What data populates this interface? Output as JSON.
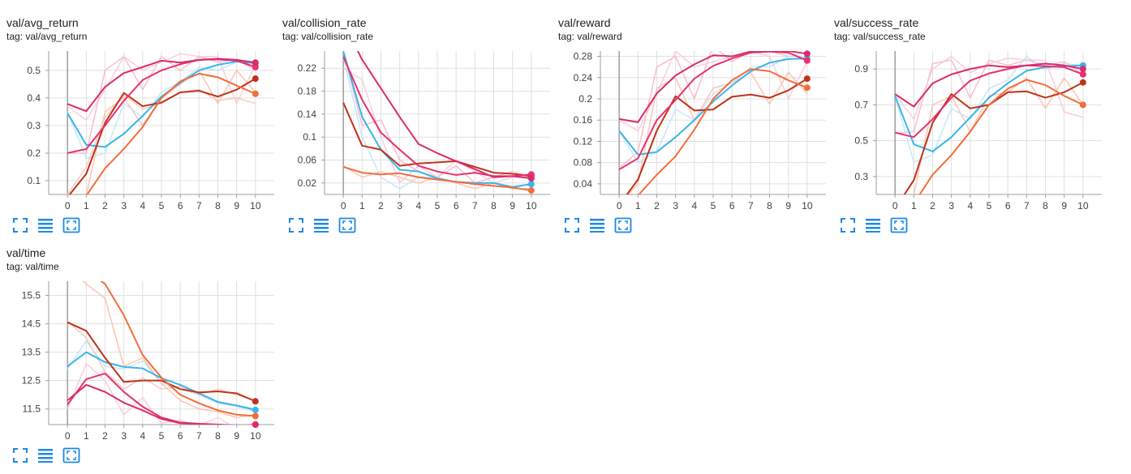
{
  "colors": {
    "grid": "#e0e0e0",
    "axis": "#9e9e9e",
    "tick_text": "#424242",
    "toolbar_icon": "#1e88e5"
  },
  "toolbar_icons": [
    "fullscreen-icon",
    "toggle-log-scale-icon",
    "fit-domain-icon"
  ],
  "charts": [
    {
      "title": "val/avg_return",
      "tag": "tag: val/avg_return"
    },
    {
      "title": "val/collision_rate",
      "tag": "tag: val/collision_rate"
    },
    {
      "title": "val/reward",
      "tag": "tag: val/reward"
    },
    {
      "title": "val/success_rate",
      "tag": "tag: val/success_rate"
    },
    {
      "title": "val/time",
      "tag": "tag: val/time"
    }
  ],
  "chart_data": [
    {
      "type": "line",
      "title": "val/avg_return",
      "x": [
        0,
        1,
        2,
        3,
        4,
        5,
        6,
        7,
        8,
        9,
        10
      ],
      "xticks": [
        0,
        1,
        2,
        3,
        4,
        5,
        6,
        7,
        8,
        9,
        10
      ],
      "yticks": [
        0.1,
        0.2,
        0.3,
        0.4,
        0.5
      ],
      "ylabels": [
        "0.1",
        "0.2",
        "0.3",
        "0.4",
        "0.5"
      ],
      "xlim": [
        -1,
        11
      ],
      "ylim": [
        0.05,
        0.57
      ],
      "grid": true,
      "series": [
        {
          "color": "#39b6e8",
          "values": [
            0.345,
            0.23,
            0.222,
            0.27,
            0.335,
            0.405,
            0.455,
            0.5,
            0.52,
            0.532,
            0.525
          ]
        },
        {
          "color": "#c0321a",
          "values": [
            0.04,
            0.125,
            0.31,
            0.418,
            0.37,
            0.383,
            0.42,
            0.426,
            0.405,
            0.43,
            0.47
          ]
        },
        {
          "color": "#f26d3d",
          "values": [
            -0.01,
            0.045,
            0.145,
            0.215,
            0.295,
            0.4,
            0.46,
            0.488,
            0.475,
            0.445,
            0.415
          ]
        },
        {
          "color": "#e8306f",
          "values": [
            0.2,
            0.215,
            0.3,
            0.39,
            0.465,
            0.5,
            0.522,
            0.538,
            0.54,
            0.535,
            0.512
          ]
        },
        {
          "color": "#d92b6e",
          "values": [
            0.378,
            0.352,
            0.44,
            0.49,
            0.512,
            0.535,
            0.528,
            0.538,
            0.542,
            0.538,
            0.528
          ]
        }
      ],
      "raw_series": [
        {
          "color": "#f7b6c8",
          "values": [
            0.2,
            0.2,
            0.5,
            0.55,
            0.43,
            0.55,
            0.5,
            0.55,
            0.53,
            0.54,
            0.5
          ]
        },
        {
          "color": "#fbbfaa",
          "values": [
            0.0,
            0.05,
            0.35,
            0.4,
            0.3,
            0.4,
            0.45,
            0.5,
            0.38,
            0.5,
            0.42
          ]
        },
        {
          "color": "#f9c8d6",
          "values": [
            0.37,
            0.32,
            0.43,
            0.55,
            0.5,
            0.53,
            0.56,
            0.55,
            0.55,
            0.38,
            0.52
          ]
        },
        {
          "color": "#bfe4f6",
          "values": [
            0.35,
            0.18,
            0.2,
            0.38,
            0.33,
            0.42,
            0.46,
            0.51,
            0.5,
            0.53,
            0.53
          ]
        },
        {
          "color": "#f4c6bb",
          "values": [
            0.05,
            0.15,
            0.33,
            0.41,
            0.36,
            0.38,
            0.42,
            0.43,
            0.39,
            0.4,
            0.38
          ]
        }
      ]
    },
    {
      "type": "line",
      "title": "val/collision_rate",
      "x": [
        0,
        1,
        2,
        3,
        4,
        5,
        6,
        7,
        8,
        9,
        10
      ],
      "xticks": [
        0,
        1,
        2,
        3,
        4,
        5,
        6,
        7,
        8,
        9,
        10
      ],
      "yticks": [
        0.02,
        0.06,
        0.1,
        0.14,
        0.18,
        0.22
      ],
      "ylabels": [
        "0.02",
        "0.06",
        "0.1",
        "0.14",
        "0.18",
        "0.22"
      ],
      "xlim": [
        -1,
        11
      ],
      "ylim": [
        0.0,
        0.25
      ],
      "grid": true,
      "series": [
        {
          "color": "#39b6e8",
          "values": [
            0.25,
            0.135,
            0.078,
            0.043,
            0.04,
            0.028,
            0.022,
            0.02,
            0.02,
            0.013,
            0.018
          ]
        },
        {
          "color": "#c0321a",
          "values": [
            0.16,
            0.085,
            0.078,
            0.05,
            0.054,
            0.056,
            0.058,
            0.048,
            0.038,
            0.036,
            0.032
          ]
        },
        {
          "color": "#f26d3d",
          "values": [
            0.048,
            0.038,
            0.035,
            0.037,
            0.03,
            0.026,
            0.022,
            0.018,
            0.015,
            0.012,
            0.007
          ]
        },
        {
          "color": "#e8306f",
          "values": [
            0.24,
            0.165,
            0.108,
            0.078,
            0.05,
            0.04,
            0.034,
            0.038,
            0.032,
            0.032,
            0.035
          ]
        },
        {
          "color": "#d92b6e",
          "values": [
            0.3,
            0.235,
            0.185,
            0.135,
            0.088,
            0.072,
            0.058,
            0.044,
            0.03,
            0.032,
            0.028
          ]
        }
      ],
      "raw_series": [
        {
          "color": "#f7b6c8",
          "values": [
            0.25,
            0.12,
            0.13,
            0.06,
            0.04,
            0.03,
            0.05,
            0.02,
            0.03,
            0.04,
            0.03
          ]
        },
        {
          "color": "#bfe4f6",
          "values": [
            0.24,
            0.1,
            0.03,
            0.01,
            0.03,
            0.03,
            0.02,
            0.02,
            0.02,
            0.01,
            0.02
          ]
        },
        {
          "color": "#fbbfaa",
          "values": [
            0.05,
            0.03,
            0.04,
            0.03,
            0.02,
            0.03,
            0.02,
            0.01,
            0.02,
            0.01,
            0.01
          ]
        },
        {
          "color": "#f9c8d6",
          "values": [
            0.22,
            0.2,
            0.1,
            0.02,
            0.05,
            0.03,
            0.06,
            0.04,
            0.02,
            0.03,
            0.03
          ]
        }
      ]
    },
    {
      "type": "line",
      "title": "val/reward",
      "x": [
        0,
        1,
        2,
        3,
        4,
        5,
        6,
        7,
        8,
        9,
        10
      ],
      "xticks": [
        0,
        1,
        2,
        3,
        4,
        5,
        6,
        7,
        8,
        9,
        10
      ],
      "yticks": [
        0.04,
        0.08,
        0.12,
        0.16,
        0.2,
        0.24,
        0.28
      ],
      "ylabels": [
        "0.04",
        "0.08",
        "0.12",
        "0.16",
        "0.2",
        "0.24",
        "0.28"
      ],
      "xlim": [
        -1,
        11
      ],
      "ylim": [
        0.02,
        0.29
      ],
      "grid": true,
      "series": [
        {
          "color": "#39b6e8",
          "values": [
            0.14,
            0.095,
            0.1,
            0.128,
            0.16,
            0.195,
            0.225,
            0.252,
            0.268,
            0.275,
            0.276
          ]
        },
        {
          "color": "#c0321a",
          "values": [
            0.0,
            0.048,
            0.14,
            0.205,
            0.178,
            0.18,
            0.204,
            0.208,
            0.202,
            0.216,
            0.238
          ]
        },
        {
          "color": "#f26d3d",
          "values": [
            -0.02,
            0.018,
            0.057,
            0.092,
            0.142,
            0.2,
            0.235,
            0.256,
            0.252,
            0.235,
            0.221
          ]
        },
        {
          "color": "#e8306f",
          "values": [
            0.067,
            0.088,
            0.16,
            0.198,
            0.238,
            0.262,
            0.276,
            0.287,
            0.289,
            0.287,
            0.272
          ]
        },
        {
          "color": "#d92b6e",
          "values": [
            0.162,
            0.156,
            0.21,
            0.244,
            0.265,
            0.282,
            0.28,
            0.289,
            0.29,
            0.29,
            0.285
          ]
        }
      ],
      "raw_series": [
        {
          "color": "#f7b6c8",
          "values": [
            0.07,
            0.1,
            0.26,
            0.28,
            0.2,
            0.3,
            0.27,
            0.29,
            0.29,
            0.28,
            0.28
          ]
        },
        {
          "color": "#fbbfaa",
          "values": [
            0.0,
            0.04,
            0.22,
            0.24,
            0.16,
            0.22,
            0.23,
            0.25,
            0.19,
            0.25,
            0.21
          ]
        },
        {
          "color": "#f9c8d6",
          "values": [
            0.16,
            0.14,
            0.21,
            0.29,
            0.26,
            0.27,
            0.28,
            0.29,
            0.28,
            0.2,
            0.27
          ]
        },
        {
          "color": "#bfe4f6",
          "values": [
            0.14,
            0.08,
            0.1,
            0.18,
            0.16,
            0.21,
            0.23,
            0.26,
            0.26,
            0.28,
            0.28
          ]
        }
      ]
    },
    {
      "type": "line",
      "title": "val/success_rate",
      "x": [
        0,
        1,
        2,
        3,
        4,
        5,
        6,
        7,
        8,
        9,
        10
      ],
      "xticks": [
        0,
        1,
        2,
        3,
        4,
        5,
        6,
        7,
        8,
        9,
        10
      ],
      "yticks": [
        0.3,
        0.5,
        0.7,
        0.9
      ],
      "ylabels": [
        "0.3",
        "0.5",
        "0.7",
        "0.9"
      ],
      "xlim": [
        -1,
        11
      ],
      "ylim": [
        0.2,
        1.0
      ],
      "grid": true,
      "series": [
        {
          "color": "#39b6e8",
          "values": [
            0.75,
            0.48,
            0.44,
            0.52,
            0.63,
            0.74,
            0.82,
            0.89,
            0.91,
            0.915,
            0.92
          ]
        },
        {
          "color": "#c0321a",
          "values": [
            0.12,
            0.28,
            0.6,
            0.76,
            0.68,
            0.7,
            0.77,
            0.775,
            0.74,
            0.77,
            0.825
          ]
        },
        {
          "color": "#f26d3d",
          "values": [
            0.05,
            0.15,
            0.31,
            0.42,
            0.55,
            0.7,
            0.79,
            0.84,
            0.81,
            0.75,
            0.7
          ]
        },
        {
          "color": "#e8306f",
          "values": [
            0.545,
            0.52,
            0.62,
            0.74,
            0.835,
            0.875,
            0.9,
            0.92,
            0.915,
            0.91,
            0.87
          ]
        },
        {
          "color": "#d92b6e",
          "values": [
            0.76,
            0.69,
            0.82,
            0.87,
            0.9,
            0.92,
            0.91,
            0.92,
            0.93,
            0.92,
            0.9
          ]
        }
      ],
      "raw_series": [
        {
          "color": "#f7b6c8",
          "values": [
            0.54,
            0.55,
            0.93,
            0.95,
            0.74,
            0.95,
            0.92,
            0.95,
            0.92,
            0.94,
            0.87
          ]
        },
        {
          "color": "#fbbfaa",
          "values": [
            0.1,
            0.2,
            0.7,
            0.75,
            0.55,
            0.75,
            0.77,
            0.85,
            0.68,
            0.85,
            0.7
          ]
        },
        {
          "color": "#f9c8d6",
          "values": [
            0.76,
            0.62,
            0.9,
            0.97,
            0.88,
            0.93,
            0.96,
            0.95,
            0.95,
            0.66,
            0.63
          ]
        },
        {
          "color": "#bfe4f6",
          "values": [
            0.75,
            0.38,
            0.42,
            0.68,
            0.62,
            0.79,
            0.84,
            0.97,
            0.9,
            0.93,
            0.92
          ]
        }
      ]
    },
    {
      "type": "line",
      "title": "val/time",
      "x": [
        0,
        1,
        2,
        3,
        4,
        5,
        6,
        7,
        8,
        9,
        10
      ],
      "xticks": [
        0,
        1,
        2,
        3,
        4,
        5,
        6,
        7,
        8,
        9,
        10
      ],
      "yticks": [
        11.5,
        12.5,
        13.5,
        14.5,
        15.5
      ],
      "ylabels": [
        "11.5",
        "12.5",
        "13.5",
        "14.5",
        "15.5"
      ],
      "xlim": [
        -1,
        11
      ],
      "ylim": [
        10.95,
        16.0
      ],
      "grid": true,
      "series": [
        {
          "color": "#39b6e8",
          "values": [
            13.0,
            13.5,
            13.15,
            12.98,
            12.93,
            12.58,
            12.35,
            12.05,
            11.75,
            11.62,
            11.47
          ]
        },
        {
          "color": "#c0321a",
          "values": [
            14.55,
            14.25,
            13.3,
            12.45,
            12.5,
            12.5,
            12.2,
            12.08,
            12.12,
            12.05,
            11.77
          ]
        },
        {
          "color": "#f26d3d",
          "values": [
            16.6,
            16.4,
            15.9,
            14.8,
            13.4,
            12.6,
            12.0,
            11.7,
            11.45,
            11.3,
            11.25
          ]
        },
        {
          "color": "#e8306f",
          "values": [
            11.65,
            12.55,
            12.75,
            12.1,
            11.58,
            11.2,
            11.02,
            10.98,
            10.95,
            10.9,
            10.95
          ]
        },
        {
          "color": "#d92b6e",
          "values": [
            11.8,
            12.35,
            12.1,
            11.72,
            11.45,
            11.15,
            11.0,
            10.96,
            10.95,
            10.92,
            10.9
          ]
        }
      ],
      "raw_series": [
        {
          "color": "#bfe4f6",
          "values": [
            12.9,
            13.9,
            13.0,
            12.9,
            13.2,
            12.4,
            12.2,
            12.0,
            11.7,
            11.6,
            11.4
          ]
        },
        {
          "color": "#fbbfaa",
          "values": [
            16.5,
            15.9,
            15.4,
            13.0,
            13.3,
            12.4,
            11.8,
            11.5,
            11.4,
            11.2,
            11.3
          ]
        },
        {
          "color": "#f9c8d6",
          "values": [
            11.5,
            13.1,
            12.5,
            11.3,
            11.9,
            11.0,
            11.1,
            10.9,
            11.2,
            10.8,
            11.0
          ]
        },
        {
          "color": "#f4c6bb",
          "values": [
            14.6,
            14.0,
            12.8,
            12.2,
            12.6,
            12.2,
            12.3,
            12.0,
            12.2,
            12.0,
            11.8
          ]
        }
      ]
    }
  ]
}
